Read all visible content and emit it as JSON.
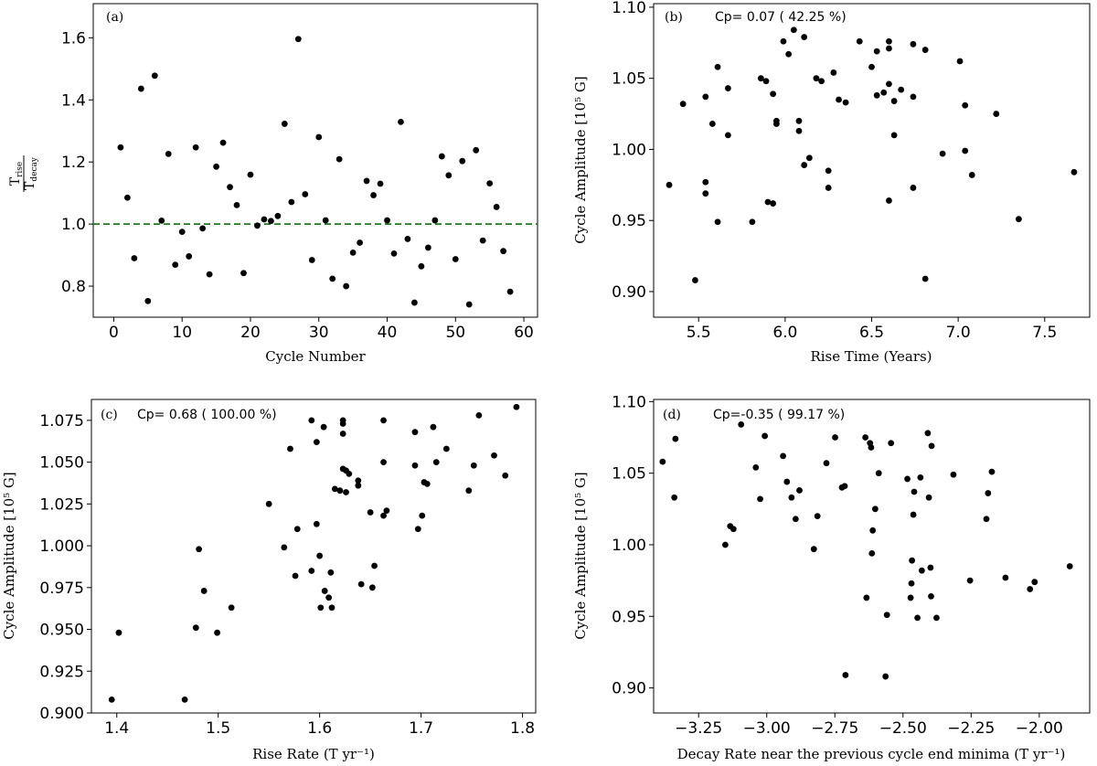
{
  "chart_data": [
    {
      "panel_label": "(a)",
      "type": "scatter",
      "title": "",
      "xlabel": "Cycle Number",
      "ylabel_main": "T",
      "ylabel_num_sub": "rise",
      "ylabel_den_sub": "decay",
      "annotation": "",
      "xlim": [
        -3,
        62
      ],
      "ylim": [
        0.7,
        1.71
      ],
      "xticks": [
        0,
        10,
        20,
        30,
        40,
        50,
        60
      ],
      "xtick_labels": [
        "0",
        "10",
        "20",
        "30",
        "40",
        "50",
        "60"
      ],
      "yticks": [
        0.8,
        1.0,
        1.2,
        1.4,
        1.6
      ],
      "ytick_labels": [
        "0.8",
        "1.0",
        "1.2",
        "1.4",
        "1.6"
      ],
      "hline": {
        "y": 1.0,
        "color": "#1f7a1f",
        "style": "dashed"
      },
      "point_color": "#000000",
      "points": [
        [
          1,
          1.247
        ],
        [
          2,
          1.085
        ],
        [
          3,
          0.89
        ],
        [
          4,
          1.436
        ],
        [
          5,
          0.752
        ],
        [
          6,
          1.478
        ],
        [
          7,
          1.011
        ],
        [
          8,
          1.226
        ],
        [
          9,
          0.869
        ],
        [
          10,
          0.975
        ],
        [
          11,
          0.896
        ],
        [
          12,
          1.247
        ],
        [
          13,
          0.986
        ],
        [
          14,
          0.838
        ],
        [
          15,
          1.185
        ],
        [
          16,
          1.262
        ],
        [
          17,
          1.119
        ],
        [
          18,
          1.061
        ],
        [
          19,
          0.842
        ],
        [
          20,
          1.159
        ],
        [
          21,
          0.995
        ],
        [
          22,
          1.015
        ],
        [
          23,
          1.01
        ],
        [
          24,
          1.026
        ],
        [
          25,
          1.323
        ],
        [
          26,
          1.071
        ],
        [
          27,
          1.596
        ],
        [
          28,
          1.096
        ],
        [
          29,
          0.884
        ],
        [
          30,
          1.28
        ],
        [
          31,
          1.012
        ],
        [
          32,
          0.824
        ],
        [
          33,
          1.209
        ],
        [
          34,
          0.8
        ],
        [
          35,
          0.908
        ],
        [
          36,
          0.94
        ],
        [
          37,
          1.139
        ],
        [
          38,
          1.093
        ],
        [
          39,
          1.13
        ],
        [
          40,
          1.012
        ],
        [
          41,
          0.905
        ],
        [
          42,
          1.329
        ],
        [
          43,
          0.952
        ],
        [
          44,
          0.747
        ],
        [
          45,
          0.864
        ],
        [
          46,
          0.924
        ],
        [
          47,
          1.012
        ],
        [
          48,
          1.218
        ],
        [
          49,
          1.157
        ],
        [
          50,
          0.887
        ],
        [
          51,
          1.203
        ],
        [
          52,
          0.741
        ],
        [
          53,
          1.238
        ],
        [
          54,
          0.947
        ],
        [
          55,
          1.131
        ],
        [
          56,
          1.055
        ],
        [
          57,
          0.913
        ],
        [
          58,
          0.782
        ]
      ]
    },
    {
      "panel_label": "(b)",
      "type": "scatter",
      "title": "",
      "xlabel": "Rise Time (Years)",
      "ylabel": "Cycle Amplitude [10⁵ G]",
      "annotation": "Cp= 0.07 ( 42.25 %)",
      "xlim": [
        5.24,
        7.76
      ],
      "ylim": [
        0.882,
        1.1025
      ],
      "xticks": [
        5.5,
        6.0,
        6.5,
        7.0,
        7.5
      ],
      "xtick_labels": [
        "5.5",
        "6.0",
        "6.5",
        "7.0",
        "7.5"
      ],
      "yticks": [
        0.9,
        0.95,
        1.0,
        1.05,
        1.1
      ],
      "ytick_labels": [
        "0.90",
        "0.95",
        "1.00",
        "1.05",
        "1.10"
      ],
      "point_color": "#000000",
      "points": [
        [
          5.33,
          0.975
        ],
        [
          5.41,
          1.032
        ],
        [
          5.48,
          0.908
        ],
        [
          5.54,
          1.037
        ],
        [
          5.54,
          0.977
        ],
        [
          5.54,
          0.969
        ],
        [
          5.58,
          1.018
        ],
        [
          5.61,
          1.058
        ],
        [
          5.61,
          0.949
        ],
        [
          5.67,
          1.043
        ],
        [
          5.67,
          1.01
        ],
        [
          5.81,
          0.949
        ],
        [
          5.86,
          1.05
        ],
        [
          5.89,
          1.048
        ],
        [
          5.9,
          0.963
        ],
        [
          5.93,
          0.962
        ],
        [
          5.93,
          1.039
        ],
        [
          5.95,
          1.02
        ],
        [
          5.95,
          1.018
        ],
        [
          5.99,
          1.076
        ],
        [
          6.02,
          1.067
        ],
        [
          6.05,
          1.084
        ],
        [
          6.08,
          1.02
        ],
        [
          6.08,
          1.013
        ],
        [
          6.11,
          1.079
        ],
        [
          6.11,
          0.989
        ],
        [
          6.14,
          0.994
        ],
        [
          6.18,
          1.05
        ],
        [
          6.21,
          1.048
        ],
        [
          6.25,
          0.985
        ],
        [
          6.25,
          0.973
        ],
        [
          6.28,
          1.054
        ],
        [
          6.31,
          1.035
        ],
        [
          6.35,
          1.033
        ],
        [
          6.43,
          1.076
        ],
        [
          6.5,
          1.058
        ],
        [
          6.53,
          1.069
        ],
        [
          6.53,
          1.038
        ],
        [
          6.57,
          1.04
        ],
        [
          6.6,
          1.076
        ],
        [
          6.6,
          1.071
        ],
        [
          6.6,
          1.046
        ],
        [
          6.6,
          0.964
        ],
        [
          6.63,
          1.034
        ],
        [
          6.63,
          1.01
        ],
        [
          6.67,
          1.042
        ],
        [
          6.74,
          1.074
        ],
        [
          6.74,
          1.037
        ],
        [
          6.74,
          0.973
        ],
        [
          6.81,
          1.07
        ],
        [
          6.81,
          0.909
        ],
        [
          6.91,
          0.997
        ],
        [
          7.01,
          1.062
        ],
        [
          7.04,
          1.031
        ],
        [
          7.04,
          0.999
        ],
        [
          7.08,
          0.982
        ],
        [
          7.22,
          1.025
        ],
        [
          7.35,
          0.951
        ],
        [
          7.67,
          0.984
        ]
      ]
    },
    {
      "panel_label": "(c)",
      "type": "scatter",
      "title": "",
      "xlabel": "Rise Rate (T yr⁻¹)",
      "ylabel": "Cycle Amplitude [10⁵ G]",
      "annotation": "Cp= 0.68 ( 100.00 %)",
      "xlim": [
        1.375,
        1.813
      ],
      "ylim": [
        0.9,
        1.0875
      ],
      "xticks": [
        1.4,
        1.5,
        1.6,
        1.7,
        1.8
      ],
      "xtick_labels": [
        "1.4",
        "1.5",
        "1.6",
        "1.7",
        "1.8"
      ],
      "yticks": [
        0.9,
        0.925,
        0.95,
        0.975,
        1.0,
        1.025,
        1.05,
        1.075
      ],
      "ytick_labels": [
        "0.900",
        "0.925",
        "0.950",
        "0.975",
        "1.000",
        "1.025",
        "1.050",
        "1.075"
      ],
      "point_color": "#000000",
      "points": [
        [
          1.395,
          0.908
        ],
        [
          1.402,
          0.948
        ],
        [
          1.467,
          0.908
        ],
        [
          1.478,
          0.951
        ],
        [
          1.481,
          0.998
        ],
        [
          1.486,
          0.973
        ],
        [
          1.499,
          0.948
        ],
        [
          1.513,
          0.963
        ],
        [
          1.55,
          1.025
        ],
        [
          1.565,
          0.999
        ],
        [
          1.571,
          1.058
        ],
        [
          1.576,
          0.982
        ],
        [
          1.578,
          1.01
        ],
        [
          1.592,
          1.075
        ],
        [
          1.592,
          0.985
        ],
        [
          1.597,
          1.062
        ],
        [
          1.597,
          1.013
        ],
        [
          1.6,
          0.994
        ],
        [
          1.601,
          0.963
        ],
        [
          1.604,
          1.071
        ],
        [
          1.605,
          0.973
        ],
        [
          1.609,
          0.969
        ],
        [
          1.611,
          0.984
        ],
        [
          1.612,
          0.963
        ],
        [
          1.615,
          1.034
        ],
        [
          1.62,
          1.033
        ],
        [
          1.623,
          1.075
        ],
        [
          1.623,
          1.073
        ],
        [
          1.623,
          1.067
        ],
        [
          1.623,
          1.046
        ],
        [
          1.626,
          1.045
        ],
        [
          1.626,
          1.032
        ],
        [
          1.629,
          1.043
        ],
        [
          1.638,
          1.039
        ],
        [
          1.638,
          1.036
        ],
        [
          1.641,
          0.977
        ],
        [
          1.65,
          1.02
        ],
        [
          1.652,
          0.975
        ],
        [
          1.654,
          0.988
        ],
        [
          1.663,
          1.075
        ],
        [
          1.663,
          1.05
        ],
        [
          1.663,
          1.018
        ],
        [
          1.666,
          1.021
        ],
        [
          1.694,
          1.068
        ],
        [
          1.694,
          1.048
        ],
        [
          1.697,
          1.01
        ],
        [
          1.701,
          1.018
        ],
        [
          1.703,
          1.038
        ],
        [
          1.706,
          1.037
        ],
        [
          1.712,
          1.071
        ],
        [
          1.715,
          1.05
        ],
        [
          1.725,
          1.058
        ],
        [
          1.747,
          1.033
        ],
        [
          1.752,
          1.048
        ],
        [
          1.757,
          1.078
        ],
        [
          1.772,
          1.054
        ],
        [
          1.783,
          1.042
        ],
        [
          1.794,
          1.083
        ]
      ]
    },
    {
      "panel_label": "(d)",
      "type": "scatter",
      "title": "",
      "xlabel": "Decay Rate near the previous cycle end minima (T yr⁻¹)",
      "ylabel": "Cycle Amplitude [10⁵ G]",
      "annotation": "Cp=-0.35 ( 99.17 %)",
      "xlim": [
        -3.415,
        -1.815
      ],
      "ylim": [
        0.8825,
        1.1015
      ],
      "xticks": [
        -3.25,
        -3.0,
        -2.75,
        -2.5,
        -2.25,
        -2.0
      ],
      "xtick_labels": [
        "−3.25",
        "−3.00",
        "−2.75",
        "−2.50",
        "−2.25",
        "−2.00"
      ],
      "yticks": [
        0.9,
        0.95,
        1.0,
        1.05,
        1.1
      ],
      "ytick_labels": [
        "0.90",
        "0.95",
        "1.00",
        "1.05",
        "1.10"
      ],
      "point_color": "#000000",
      "points": [
        [
          -3.382,
          1.058
        ],
        [
          -3.339,
          1.033
        ],
        [
          -3.335,
          1.074
        ],
        [
          -3.152,
          1.0
        ],
        [
          -3.134,
          1.013
        ],
        [
          -3.122,
          1.011
        ],
        [
          -3.094,
          1.084
        ],
        [
          -3.04,
          1.054
        ],
        [
          -3.024,
          1.032
        ],
        [
          -3.007,
          1.076
        ],
        [
          -2.94,
          1.062
        ],
        [
          -2.926,
          1.044
        ],
        [
          -2.909,
          1.033
        ],
        [
          -2.894,
          1.018
        ],
        [
          -2.88,
          1.038
        ],
        [
          -2.827,
          0.997
        ],
        [
          -2.814,
          1.02
        ],
        [
          -2.781,
          1.057
        ],
        [
          -2.749,
          1.075
        ],
        [
          -2.724,
          1.04
        ],
        [
          -2.714,
          1.041
        ],
        [
          -2.711,
          0.909
        ],
        [
          -2.638,
          1.075
        ],
        [
          -2.634,
          0.963
        ],
        [
          -2.621,
          1.071
        ],
        [
          -2.617,
          1.068
        ],
        [
          -2.614,
          0.994
        ],
        [
          -2.611,
          1.01
        ],
        [
          -2.602,
          1.025
        ],
        [
          -2.589,
          1.05
        ],
        [
          -2.564,
          0.908
        ],
        [
          -2.559,
          0.951
        ],
        [
          -2.544,
          1.071
        ],
        [
          -2.484,
          1.046
        ],
        [
          -2.472,
          0.963
        ],
        [
          -2.469,
          0.973
        ],
        [
          -2.467,
          0.989
        ],
        [
          -2.462,
          1.021
        ],
        [
          -2.459,
          1.037
        ],
        [
          -2.447,
          0.949
        ],
        [
          -2.436,
          1.047
        ],
        [
          -2.431,
          0.982
        ],
        [
          -2.409,
          1.078
        ],
        [
          -2.405,
          1.033
        ],
        [
          -2.399,
          0.984
        ],
        [
          -2.397,
          0.964
        ],
        [
          -2.395,
          1.069
        ],
        [
          -2.377,
          0.949
        ],
        [
          -2.315,
          1.049
        ],
        [
          -2.254,
          0.975
        ],
        [
          -2.194,
          1.018
        ],
        [
          -2.188,
          1.036
        ],
        [
          -2.174,
          1.051
        ],
        [
          -2.124,
          0.977
        ],
        [
          -2.034,
          0.969
        ],
        [
          -2.017,
          0.974
        ],
        [
          -1.888,
          0.985
        ]
      ]
    }
  ]
}
